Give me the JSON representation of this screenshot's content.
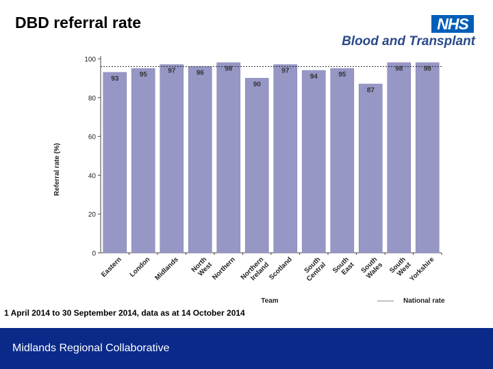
{
  "slide": {
    "title": "DBD referral rate",
    "footnote": "1 April 2014 to 30 September 2014, data as at 14 October 2014",
    "footer": "Midlands Regional Collaborative"
  },
  "logo": {
    "nhs": "NHS",
    "org": "Blood and Transplant",
    "brand_color": "#005eb8"
  },
  "chart_data": {
    "type": "bar",
    "title": "",
    "xlabel": "Team",
    "ylabel": "Referral rate (%)",
    "ylim": [
      0,
      100
    ],
    "yticks": [
      0,
      20,
      40,
      60,
      80,
      100
    ],
    "categories": [
      "Eastern",
      "London",
      "Midlands",
      "North West",
      "Northern",
      "Northern Ireland",
      "Scotland",
      "South Central",
      "South East",
      "South Wales",
      "South West",
      "Yorkshire"
    ],
    "values": [
      93,
      95,
      97,
      96,
      98,
      90,
      97,
      94,
      95,
      87,
      98,
      98
    ],
    "value_labels": [
      "93",
      "95",
      "97",
      "96",
      "98",
      "90",
      "97",
      "94",
      "95",
      "87",
      "98",
      "98"
    ],
    "reference_line": {
      "value": 96,
      "label": "National rate",
      "legend_dash": "--------"
    },
    "bar_color": "#9797c6",
    "bar_edge_color": "#8585b4"
  }
}
